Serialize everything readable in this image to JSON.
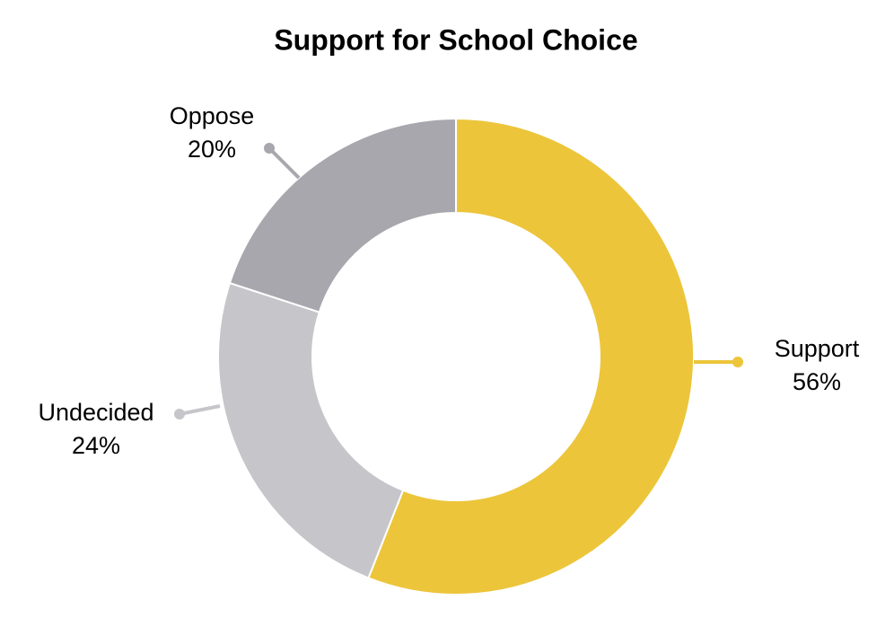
{
  "chart_data": {
    "type": "donut",
    "title": "Support for School Choice",
    "categories": [
      "Support",
      "Undecided",
      "Oppose"
    ],
    "values": [
      56,
      24,
      20
    ],
    "value_labels": [
      "56%",
      "24%",
      "20%"
    ],
    "colors": [
      "#ecc53a",
      "#c6c6ca",
      "#a8a7ad"
    ]
  }
}
